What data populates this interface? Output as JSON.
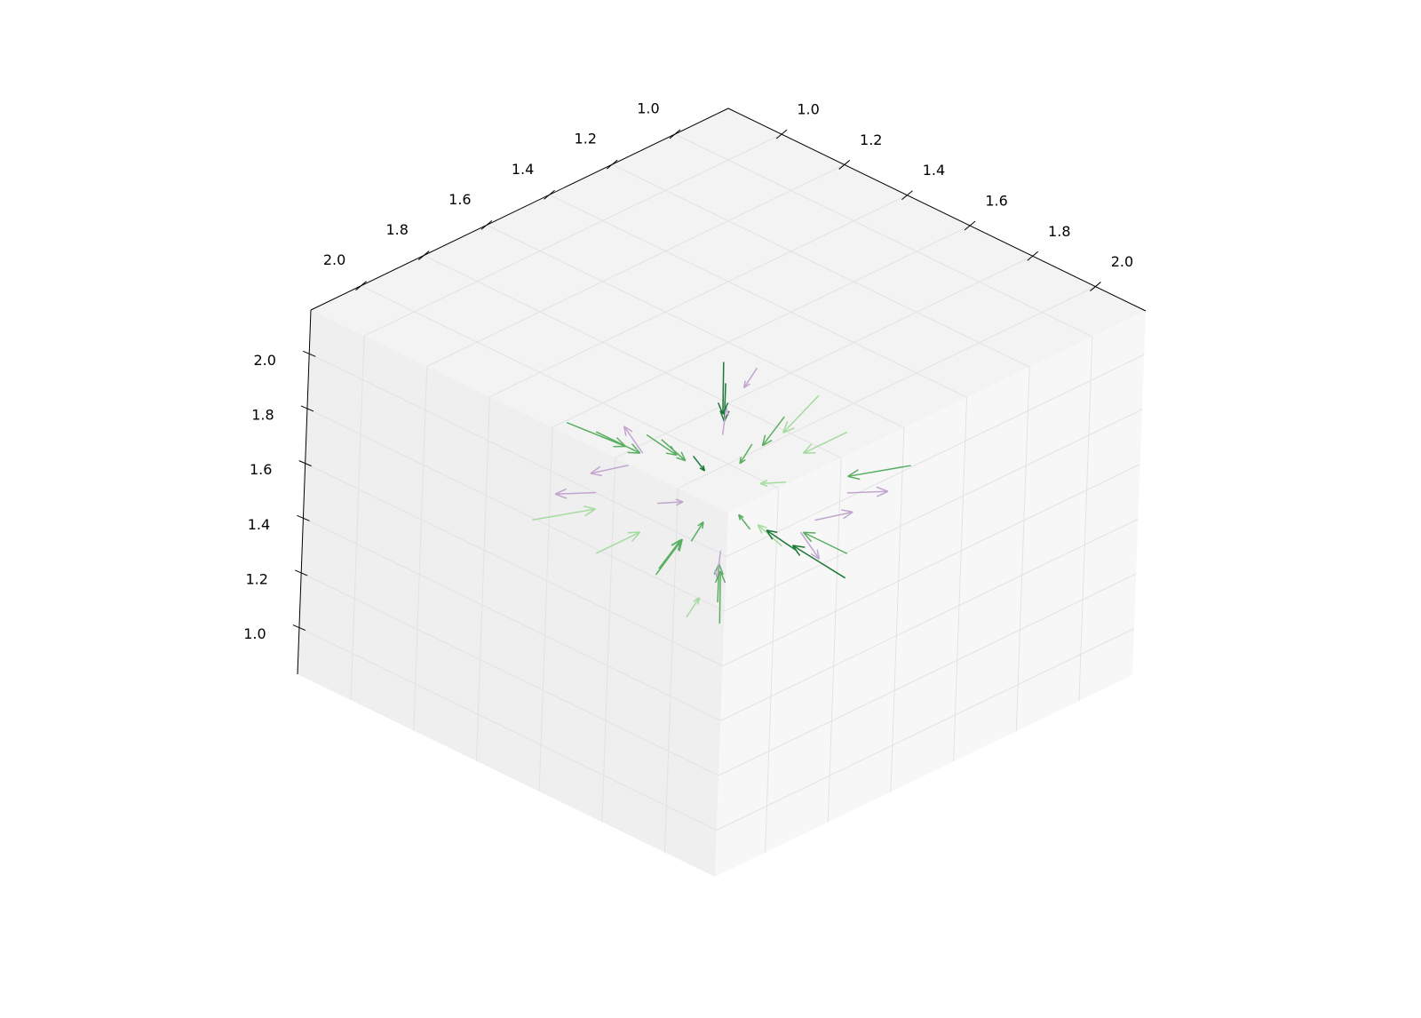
{
  "chart_data": {
    "type": "quiver3d",
    "xlim": [
      0.83,
      2.16
    ],
    "ylim": [
      0.83,
      2.16
    ],
    "zlim": [
      0.83,
      2.16
    ],
    "xticks": [
      {
        "value": 1.0,
        "label": "1.0"
      },
      {
        "value": 1.2,
        "label": "1.2"
      },
      {
        "value": 1.4,
        "label": "1.4"
      },
      {
        "value": 1.6,
        "label": "1.6"
      },
      {
        "value": 1.8,
        "label": "1.8"
      },
      {
        "value": 2.0,
        "label": "2.0"
      }
    ],
    "yticks": [
      {
        "value": 1.0,
        "label": "1.0"
      },
      {
        "value": 1.2,
        "label": "1.2"
      },
      {
        "value": 1.4,
        "label": "1.4"
      },
      {
        "value": 1.6,
        "label": "1.6"
      },
      {
        "value": 1.8,
        "label": "1.8"
      },
      {
        "value": 2.0,
        "label": "2.0"
      }
    ],
    "zticks": [
      {
        "value": 1.0,
        "label": "1.0"
      },
      {
        "value": 1.2,
        "label": "1.2"
      },
      {
        "value": 1.4,
        "label": "1.4"
      },
      {
        "value": 1.6,
        "label": "1.6"
      },
      {
        "value": 1.8,
        "label": "1.8"
      },
      {
        "value": 2.0,
        "label": "2.0"
      }
    ],
    "grid": true,
    "x": [
      1.2,
      1.8,
      1.4,
      1.7,
      1.3,
      1.6,
      1.1,
      1.9,
      1.5,
      1.5,
      1.5,
      1.5,
      1.4,
      1.6,
      1.3,
      1.7,
      1.25,
      1.75,
      1.35,
      1.65,
      1.45,
      1.55,
      1.2,
      1.8,
      1.3,
      1.7,
      1.4,
      1.6,
      1.15,
      1.85,
      1.5,
      1.5,
      1.35,
      1.65,
      1.25,
      1.75
    ],
    "y": [
      1.3,
      1.7,
      1.8,
      1.2,
      1.6,
      1.4,
      1.5,
      1.5,
      1.1,
      1.9,
      1.5,
      1.5,
      1.4,
      1.6,
      1.7,
      1.3,
      1.25,
      1.75,
      1.55,
      1.45,
      1.2,
      1.8,
      1.8,
      1.2,
      1.4,
      1.6,
      1.5,
      1.5,
      1.35,
      1.65,
      1.3,
      1.7,
      1.65,
      1.35,
      1.5,
      1.5
    ],
    "z": [
      1.4,
      1.6,
      1.3,
      1.7,
      1.8,
      1.2,
      1.5,
      1.5,
      1.5,
      1.5,
      1.1,
      1.9,
      1.6,
      1.4,
      1.5,
      1.5,
      1.7,
      1.3,
      1.25,
      1.75,
      1.45,
      1.55,
      1.6,
      1.4,
      1.2,
      1.8,
      1.9,
      1.1,
      1.5,
      1.5,
      1.35,
      1.65,
      1.4,
      1.6,
      1.15,
      1.85
    ],
    "u": [
      0.12,
      -0.12,
      0.05,
      -0.08,
      0.07,
      -0.04,
      0.14,
      -0.14,
      0.0,
      0.0,
      0.0,
      0.0,
      -0.06,
      0.06,
      -0.07,
      0.07,
      0.1,
      -0.1,
      0.06,
      -0.06,
      -0.04,
      0.04,
      0.1,
      -0.1,
      0.08,
      -0.08,
      0.04,
      -0.04,
      0.13,
      -0.13,
      0.0,
      0.0,
      -0.06,
      0.06,
      0.1,
      -0.1
    ],
    "v": [
      0.08,
      -0.08,
      -0.12,
      0.11,
      -0.04,
      0.04,
      0.0,
      0.0,
      0.14,
      -0.14,
      0.0,
      0.0,
      -0.05,
      0.05,
      0.06,
      -0.06,
      0.1,
      -0.1,
      -0.02,
      0.02,
      -0.1,
      0.1,
      -0.1,
      0.1,
      0.04,
      -0.04,
      0.0,
      0.0,
      0.06,
      -0.06,
      0.08,
      -0.08,
      0.06,
      -0.06,
      0.0,
      0.0
    ],
    "w": [
      0.04,
      -0.04,
      0.08,
      -0.07,
      -0.12,
      0.13,
      0.0,
      0.0,
      0.0,
      0.0,
      0.14,
      -0.14,
      0.04,
      -0.04,
      0.0,
      0.0,
      -0.08,
      0.08,
      0.1,
      -0.1,
      0.02,
      -0.02,
      -0.04,
      0.04,
      0.12,
      -0.12,
      -0.05,
      0.05,
      0.0,
      0.0,
      0.05,
      -0.05,
      0.03,
      -0.03,
      0.13,
      -0.13
    ],
    "colors": [
      "#5aae61",
      "#5aae61",
      "#1b7837",
      "#5aae61",
      "#a6dba0",
      "#5aae61",
      "#a6dba0",
      "#a6dba0",
      "#5aae61",
      "#5aae61",
      "#5aae61",
      "#1b7837",
      "#c2a5cf",
      "#c2a5cf",
      "#c2a5cf",
      "#c2a5cf",
      "#1b7837",
      "#5aae61",
      "#a6dba0",
      "#5aae61",
      "#c2a5cf",
      "#c2a5cf",
      "#5aae61",
      "#a6dba0",
      "#5aae61",
      "#1b7837",
      "#c2a5cf",
      "#a6dba0",
      "#5aae61",
      "#5aae61",
      "#c2a5cf",
      "#a6dba0",
      "#c2a5cf",
      "#c2a5cf",
      "#1b7837",
      "#5aae61"
    ]
  }
}
